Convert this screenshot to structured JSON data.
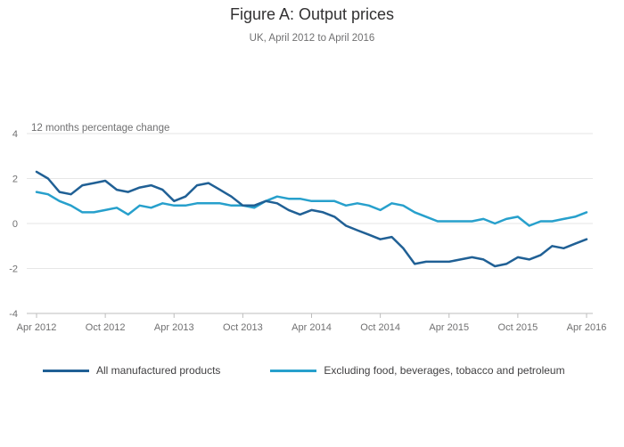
{
  "header": {
    "title": "Figure A: Output prices",
    "subtitle": "UK, April 2012 to April 2016"
  },
  "chart_data": {
    "type": "line",
    "title": "Figure A: Output prices",
    "subtitle": "UK, April 2012 to April 2016",
    "ylabel": "12 months percentage change",
    "xlabel": "",
    "ylim": [
      -4,
      4
    ],
    "yticks": [
      4,
      2,
      0,
      -2,
      -4
    ],
    "grid": true,
    "legend_position": "bottom-left",
    "x": [
      "Apr 2012",
      "May 2012",
      "Jun 2012",
      "Jul 2012",
      "Aug 2012",
      "Sep 2012",
      "Oct 2012",
      "Nov 2012",
      "Dec 2012",
      "Jan 2013",
      "Feb 2013",
      "Mar 2013",
      "Apr 2013",
      "May 2013",
      "Jun 2013",
      "Jul 2013",
      "Aug 2013",
      "Sep 2013",
      "Oct 2013",
      "Nov 2013",
      "Dec 2013",
      "Jan 2014",
      "Feb 2014",
      "Mar 2014",
      "Apr 2014",
      "May 2014",
      "Jun 2014",
      "Jul 2014",
      "Aug 2014",
      "Sep 2014",
      "Oct 2014",
      "Nov 2014",
      "Dec 2014",
      "Jan 2015",
      "Feb 2015",
      "Mar 2015",
      "Apr 2015",
      "May 2015",
      "Jun 2015",
      "Jul 2015",
      "Aug 2015",
      "Sep 2015",
      "Oct 2015",
      "Nov 2015",
      "Dec 2015",
      "Jan 2016",
      "Feb 2016",
      "Mar 2016",
      "Apr 2016"
    ],
    "xtick_labels": [
      "Apr 2012",
      "Oct 2012",
      "Apr 2013",
      "Oct 2013",
      "Apr 2014",
      "Oct 2014",
      "Apr 2015",
      "Oct 2015",
      "Apr 2016"
    ],
    "series": [
      {
        "name": "All manufactured products",
        "color": "#206095",
        "values": [
          2.3,
          2.0,
          1.4,
          1.3,
          1.7,
          1.8,
          1.9,
          1.5,
          1.4,
          1.6,
          1.7,
          1.5,
          1.0,
          1.2,
          1.7,
          1.8,
          1.5,
          1.2,
          0.8,
          0.8,
          1.0,
          0.9,
          0.6,
          0.4,
          0.6,
          0.5,
          0.3,
          -0.1,
          -0.3,
          -0.5,
          -0.7,
          -0.6,
          -1.1,
          -1.8,
          -1.7,
          -1.7,
          -1.7,
          -1.6,
          -1.5,
          -1.6,
          -1.9,
          -1.8,
          -1.5,
          -1.6,
          -1.4,
          -1.0,
          -1.1,
          -0.9,
          -0.7
        ]
      },
      {
        "name": "Excluding food, beverages, tobacco and petroleum",
        "color": "#27a0cc",
        "values": [
          1.4,
          1.3,
          1.0,
          0.8,
          0.5,
          0.5,
          0.6,
          0.7,
          0.4,
          0.8,
          0.7,
          0.9,
          0.8,
          0.8,
          0.9,
          0.9,
          0.9,
          0.8,
          0.8,
          0.7,
          1.0,
          1.2,
          1.1,
          1.1,
          1.0,
          1.0,
          1.0,
          0.8,
          0.9,
          0.8,
          0.6,
          0.9,
          0.8,
          0.5,
          0.3,
          0.1,
          0.1,
          0.1,
          0.1,
          0.2,
          0.0,
          0.2,
          0.3,
          -0.1,
          0.1,
          0.1,
          0.2,
          0.3,
          0.5
        ]
      }
    ]
  }
}
